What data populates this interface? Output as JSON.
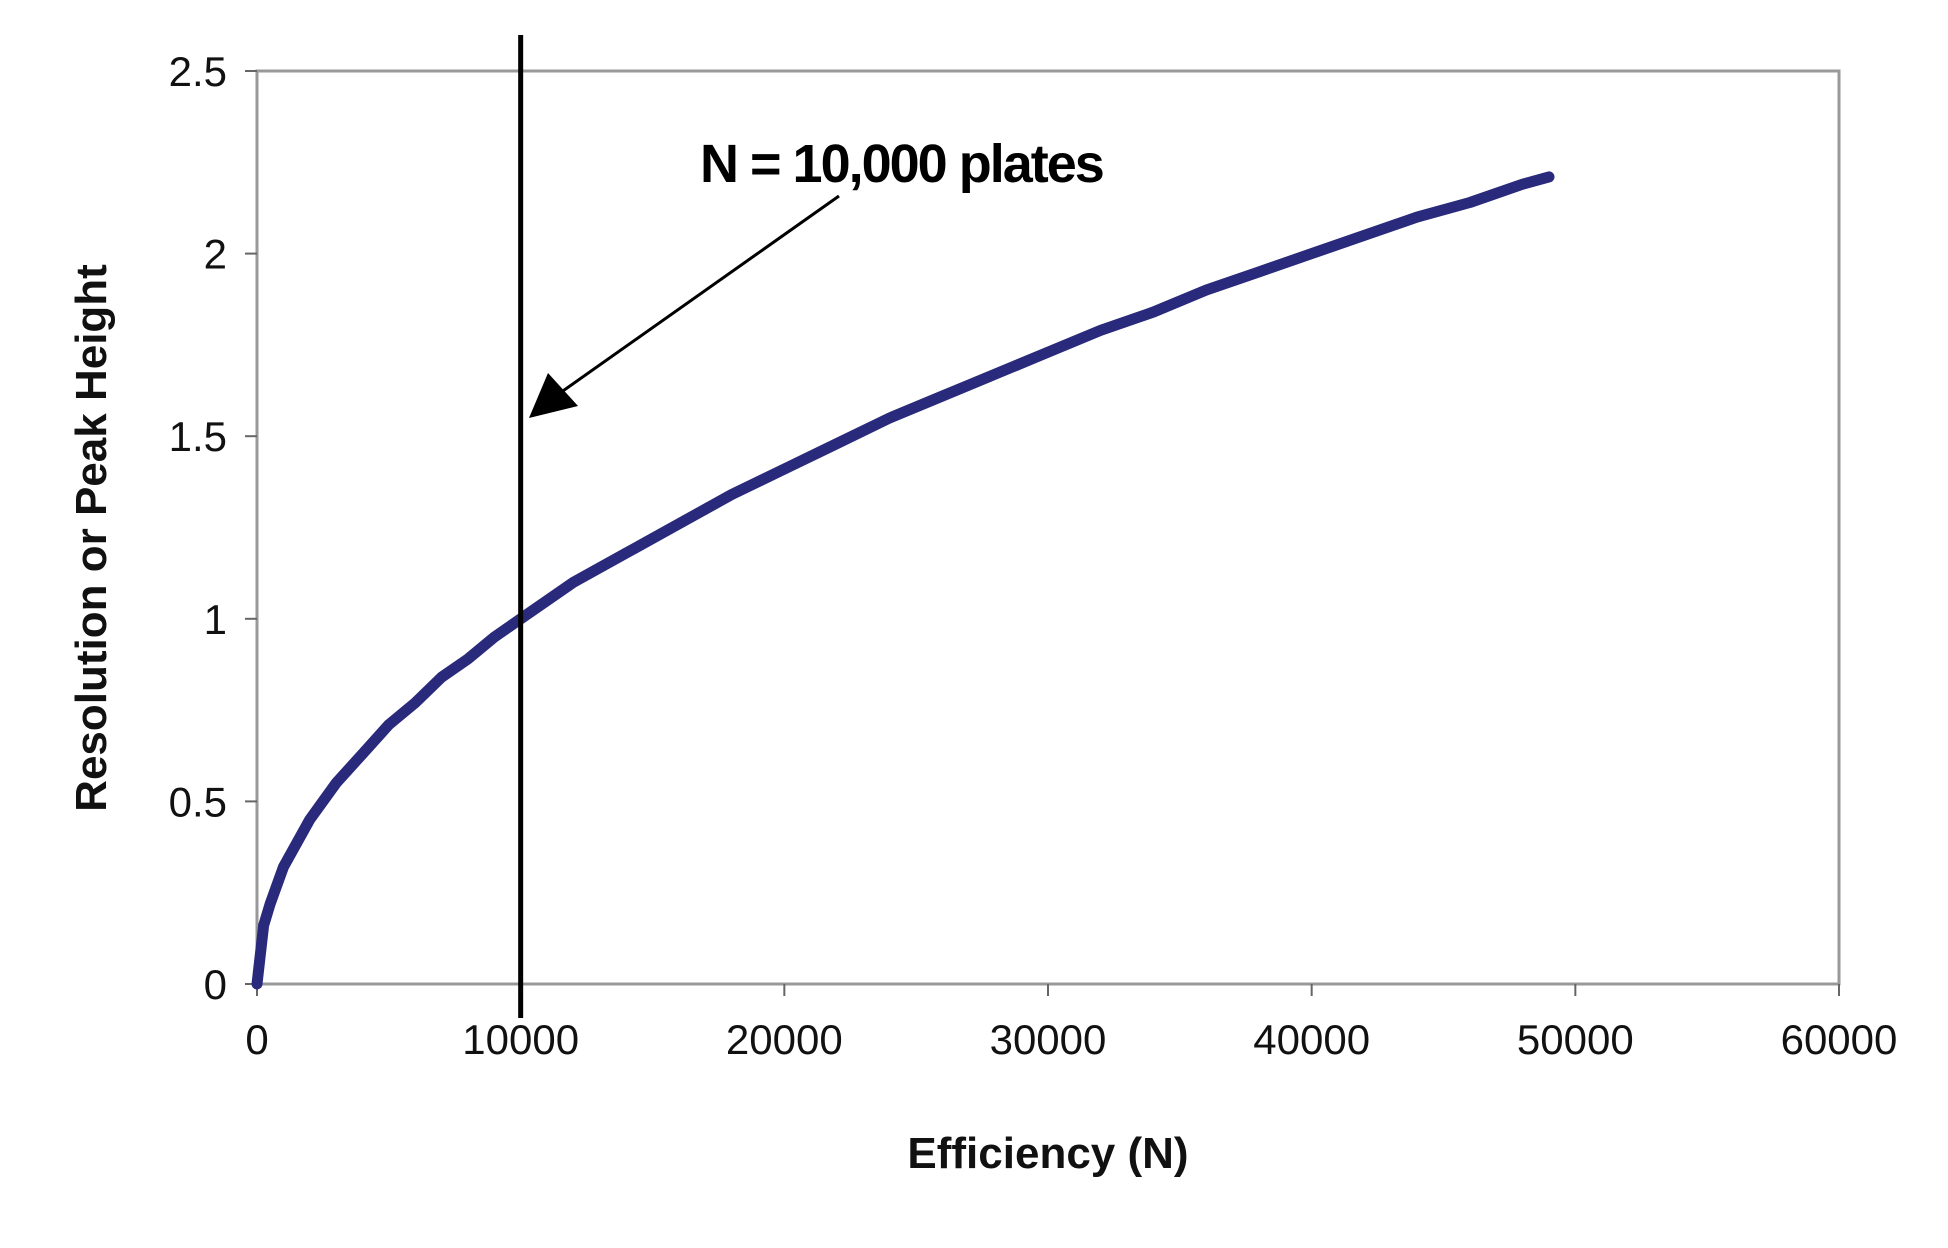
{
  "chart_data": {
    "type": "line",
    "xlabel": "Efficiency (N)",
    "ylabel": "Resolution or Peak Height",
    "xlim": [
      0,
      60000
    ],
    "ylim": [
      0,
      2.5
    ],
    "xticks": [
      "0",
      "10000",
      "20000",
      "30000",
      "40000",
      "50000",
      "60000"
    ],
    "yticks": [
      "0",
      "0.5",
      "1",
      "1.5",
      "2",
      "2.5"
    ],
    "grid": false,
    "series": [
      {
        "color": "#2a2a7c",
        "x": [
          0,
          250,
          500,
          1000,
          2000,
          3000,
          4000,
          5000,
          6000,
          7000,
          8000,
          9000,
          10000,
          12000,
          14000,
          16000,
          18000,
          20000,
          22000,
          24000,
          26000,
          28000,
          30000,
          32000,
          34000,
          36000,
          38000,
          40000,
          42000,
          44000,
          46000,
          48000,
          49000
        ],
        "y": [
          0,
          0.16,
          0.22,
          0.32,
          0.45,
          0.55,
          0.63,
          0.71,
          0.77,
          0.84,
          0.89,
          0.95,
          1.0,
          1.1,
          1.18,
          1.26,
          1.34,
          1.41,
          1.48,
          1.55,
          1.61,
          1.67,
          1.73,
          1.79,
          1.84,
          1.9,
          1.95,
          2.0,
          2.05,
          2.1,
          2.14,
          2.19,
          2.21
        ]
      }
    ],
    "annotations": [
      {
        "type": "vline",
        "x": 10000,
        "color": "#000000"
      },
      {
        "type": "arrow-text",
        "text": "N = 10,000 plates"
      }
    ]
  }
}
